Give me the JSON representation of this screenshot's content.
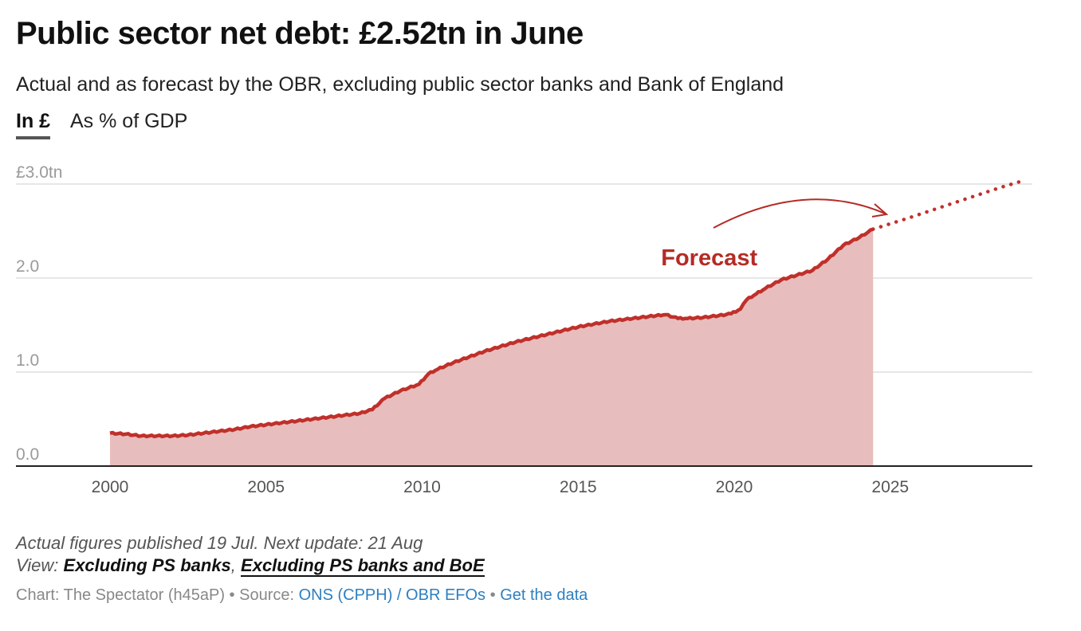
{
  "header": {
    "title": "Public sector net debt: £2.52tn in June",
    "subtitle": "Actual and as forecast by the OBR, excluding public sector banks and Bank of England"
  },
  "tabs": [
    {
      "label": "In £",
      "active": true
    },
    {
      "label": "As % of GDP",
      "active": false
    }
  ],
  "chart_data": {
    "type": "area",
    "y_unit": "£tn",
    "ylim": [
      0,
      3.0
    ],
    "xlim": [
      1997,
      2030
    ],
    "y_ticks": [
      {
        "value": 3.0,
        "label": "£3.0tn"
      },
      {
        "value": 2.0,
        "label": "2.0"
      },
      {
        "value": 1.0,
        "label": "1.0"
      },
      {
        "value": 0.0,
        "label": "0.0"
      }
    ],
    "x_ticks": [
      {
        "value": 2000,
        "label": "2000"
      },
      {
        "value": 2005,
        "label": "2005"
      },
      {
        "value": 2010,
        "label": "2010"
      },
      {
        "value": 2015,
        "label": "2015"
      },
      {
        "value": 2020,
        "label": "2020"
      },
      {
        "value": 2025,
        "label": "2025"
      }
    ],
    "grid": true,
    "colors": {
      "actual_line": "#c0302b",
      "actual_fill": "#e8bdbd",
      "forecast": "#c0302b",
      "grid": "#dddddd",
      "axis": "#222222"
    },
    "series": [
      {
        "style": "solid-area",
        "points": [
          [
            2000.0,
            0.35
          ],
          [
            2000.5,
            0.34
          ],
          [
            2001.0,
            0.32
          ],
          [
            2001.5,
            0.32
          ],
          [
            2002.0,
            0.32
          ],
          [
            2002.5,
            0.33
          ],
          [
            2003.0,
            0.35
          ],
          [
            2003.5,
            0.37
          ],
          [
            2004.0,
            0.39
          ],
          [
            2004.5,
            0.42
          ],
          [
            2005.0,
            0.44
          ],
          [
            2005.5,
            0.46
          ],
          [
            2006.0,
            0.48
          ],
          [
            2006.5,
            0.5
          ],
          [
            2007.0,
            0.52
          ],
          [
            2007.5,
            0.54
          ],
          [
            2008.0,
            0.56
          ],
          [
            2008.4,
            0.6
          ],
          [
            2008.8,
            0.72
          ],
          [
            2009.3,
            0.8
          ],
          [
            2009.9,
            0.87
          ],
          [
            2010.2,
            0.98
          ],
          [
            2010.5,
            1.03
          ],
          [
            2011.0,
            1.1
          ],
          [
            2011.5,
            1.16
          ],
          [
            2012.0,
            1.22
          ],
          [
            2012.5,
            1.27
          ],
          [
            2013.0,
            1.32
          ],
          [
            2013.5,
            1.36
          ],
          [
            2014.0,
            1.4
          ],
          [
            2014.5,
            1.44
          ],
          [
            2015.0,
            1.48
          ],
          [
            2015.5,
            1.51
          ],
          [
            2016.0,
            1.54
          ],
          [
            2016.5,
            1.56
          ],
          [
            2017.0,
            1.58
          ],
          [
            2017.5,
            1.6
          ],
          [
            2017.8,
            1.61
          ],
          [
            2018.2,
            1.57
          ],
          [
            2018.5,
            1.57
          ],
          [
            2019.0,
            1.58
          ],
          [
            2019.5,
            1.6
          ],
          [
            2019.9,
            1.62
          ],
          [
            2020.2,
            1.67
          ],
          [
            2020.4,
            1.77
          ],
          [
            2020.7,
            1.83
          ],
          [
            2021.0,
            1.89
          ],
          [
            2021.5,
            1.98
          ],
          [
            2022.0,
            2.03
          ],
          [
            2022.5,
            2.08
          ],
          [
            2023.0,
            2.2
          ],
          [
            2023.5,
            2.35
          ],
          [
            2024.0,
            2.43
          ],
          [
            2024.45,
            2.52
          ]
        ]
      },
      {
        "style": "dotted",
        "points": [
          [
            2024.45,
            2.52
          ],
          [
            2025.5,
            2.63
          ],
          [
            2026.5,
            2.74
          ],
          [
            2027.5,
            2.85
          ],
          [
            2028.5,
            2.96
          ],
          [
            2029.2,
            3.03
          ]
        ]
      }
    ],
    "annotation": {
      "text": "Forecast",
      "x": 2021.0,
      "y": 2.22
    }
  },
  "footer": {
    "note": "Actual figures published 19 Jul. Next update: 21 Aug",
    "view_prefix": "View: ",
    "view_option_1": "Excluding PS banks",
    "view_separator": ", ",
    "view_option_2": "Excluding PS banks and BoE",
    "credit": "Chart: The Spectator (h45aP) • Source: ",
    "source_link": "ONS (CPPH) / OBR EFOs",
    "separator": " • ",
    "data_link": "Get the data"
  }
}
